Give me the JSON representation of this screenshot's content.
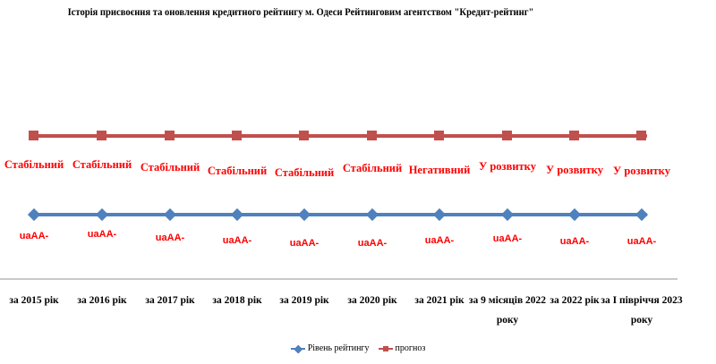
{
  "chart_data": {
    "type": "line",
    "title": "Історія присвоєння та оновлення кредитного рейтингу  м. Одеси Рейтинговим агентством \"Кредит-рейтинг\"",
    "categories": [
      "за 2015 рік",
      "за 2016 рік",
      "за 2017 рік",
      "за 2018 рік",
      "за 2019 рік",
      "за 2020 рік",
      "за 2021 рік",
      "за 9 місяців 2022 року",
      "за 2022 рік",
      "за І півріччя 2023 року"
    ],
    "series": [
      {
        "name": "Рівень рейтингу",
        "marker": "diamond",
        "color": "#4F81BD",
        "values": [
          "uaAA-",
          "uaAA-",
          "uaAA-",
          "uaAA-",
          "uaAA-",
          "uaAA-",
          "uaAA-",
          "uaAA-",
          "uaAA-",
          "uaAA-"
        ]
      },
      {
        "name": "прогноз",
        "marker": "square",
        "color": "#C0504D",
        "values": [
          "Стабільний",
          "Стабільний",
          "Стабільний",
          "Стабільний",
          "Стабільний",
          "Стабільний",
          "Негативний",
          "У розвитку",
          "У розвитку",
          "У розвитку"
        ]
      }
    ],
    "legend_position": "bottom",
    "data_label_color": "#FF0000",
    "axis_line_color": "#C9C9C9"
  }
}
